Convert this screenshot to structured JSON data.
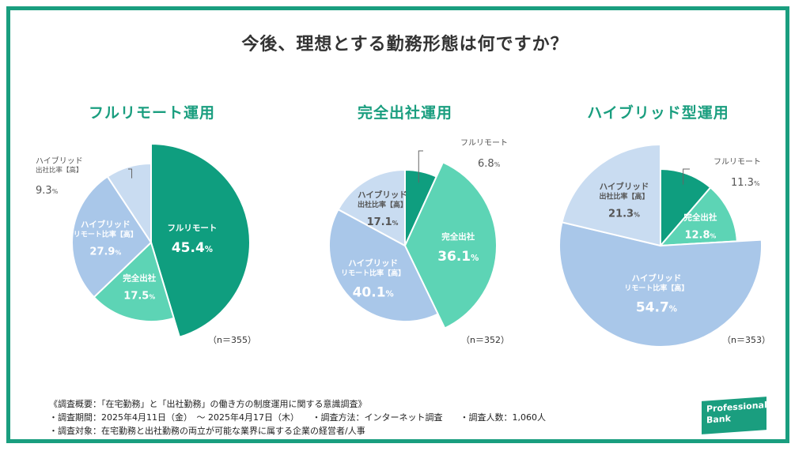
{
  "title": "今後、理想とする勤務形態は何ですか？",
  "colors": {
    "frame": "#1a9e7f",
    "full_remote": "#0f9e7f",
    "office": "#5dd4b5",
    "hybrid_remote_high": "#a9c7e9",
    "hybrid_office_high": "#c9dcf1"
  },
  "chart_data": [
    {
      "type": "pie",
      "title": "フルリモート運用",
      "n_label": "（n＝355）",
      "slices": [
        {
          "key": "full_remote",
          "label_lines": [
            "フルリモート"
          ],
          "value": 45.4,
          "exploded": true,
          "label_position": "inside"
        },
        {
          "key": "office",
          "label_lines": [
            "完全出社"
          ],
          "value": 17.5,
          "exploded": false,
          "label_position": "inside"
        },
        {
          "key": "hybrid_remote_high",
          "label_lines": [
            "ハイブリッド",
            "リモート比率【高】"
          ],
          "value": 27.9,
          "exploded": false,
          "label_position": "inside"
        },
        {
          "key": "hybrid_office_high",
          "label_lines": [
            "ハイブリッド",
            "出社比率【高】"
          ],
          "value": 9.3,
          "exploded": false,
          "label_position": "outside"
        }
      ]
    },
    {
      "type": "pie",
      "title": "完全出社運用",
      "n_label": "（n＝352）",
      "slices": [
        {
          "key": "full_remote",
          "label_lines": [
            "フルリモート"
          ],
          "value": 6.8,
          "exploded": false,
          "label_position": "outside"
        },
        {
          "key": "office",
          "label_lines": [
            "完全出社"
          ],
          "value": 36.1,
          "exploded": true,
          "label_position": "inside"
        },
        {
          "key": "hybrid_remote_high",
          "label_lines": [
            "ハイブリッド",
            "リモート比率【高】"
          ],
          "value": 40.1,
          "exploded": false,
          "label_position": "inside"
        },
        {
          "key": "hybrid_office_high",
          "label_lines": [
            "ハイブリッド",
            "出社比率【高】"
          ],
          "value": 17.1,
          "exploded": false,
          "label_position": "inside"
        }
      ]
    },
    {
      "type": "pie",
      "title": "ハイブリッド型運用",
      "n_label": "（n＝353）",
      "slices": [
        {
          "key": "full_remote",
          "label_lines": [
            "フルリモート"
          ],
          "value": 11.3,
          "exploded": false,
          "label_position": "outside"
        },
        {
          "key": "office",
          "label_lines": [
            "完全出社"
          ],
          "value": 12.8,
          "exploded": false,
          "label_position": "inside"
        },
        {
          "key": "hybrid_remote_high",
          "label_lines": [
            "ハイブリッド",
            "リモート比率【高】"
          ],
          "value": 54.7,
          "exploded": true,
          "label_position": "inside"
        },
        {
          "key": "hybrid_office_high",
          "label_lines": [
            "ハイブリッド",
            "出社比率【高】"
          ],
          "value": 21.3,
          "exploded": true,
          "label_position": "inside"
        }
      ]
    }
  ],
  "notes": {
    "line1": "《調査概要：「在宅勤務」と「出社勤務」の働き方の制度運用に関する意識調査》",
    "line2": "・調査期間：2025年4月11日（金）　〜 2025年4月17日（木）　　・調査方法：インターネット調査　　・調査人数：1,060人",
    "line3": "・調査対象：在宅勤務と出社勤務の両立が可能な業界に属する企業の経営者/人事"
  },
  "logo": {
    "line1": "Professional",
    "line2": "Bank"
  }
}
